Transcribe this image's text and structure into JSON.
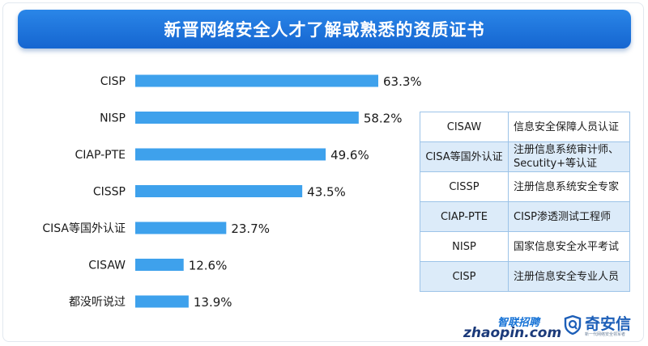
{
  "title": "新晋网络安全人才了解或熟悉的资质证书",
  "chart_data": {
    "type": "bar",
    "orientation": "horizontal",
    "title": "新晋网络安全人才了解或熟悉的资质证书",
    "categories": [
      "CISP",
      "NISP",
      "CIAP-PTE",
      "CISSP",
      "CISA等国外认证",
      "CISAW",
      "都没听说过"
    ],
    "values": [
      63.3,
      58.2,
      49.6,
      43.5,
      23.7,
      12.6,
      13.9
    ],
    "value_labels": [
      "63.3%",
      "58.2%",
      "49.6%",
      "43.5%",
      "23.7%",
      "12.6%",
      "13.9%"
    ],
    "unit": "%",
    "xlim": [
      0,
      100
    ],
    "grid": false,
    "bar_color": "#3ea1ec"
  },
  "legend_table": {
    "rows": [
      {
        "abbr": "CISAW",
        "full": "信息安全保障人员认证"
      },
      {
        "abbr": "CISA等国外认证",
        "full": "注册信息系统审计师、Secutity+等认证"
      },
      {
        "abbr": "CISSP",
        "full": "注册信息系统安全专家"
      },
      {
        "abbr": "CIAP-PTE",
        "full": "CISP渗透测试工程师"
      },
      {
        "abbr": "NISP",
        "full": "国家信息安全水平考试"
      },
      {
        "abbr": "CISP",
        "full": "注册信息安全专业人员"
      }
    ]
  },
  "logos": {
    "zhaopin_cn": "智联招聘",
    "zhaopin_en": "zhaopin.com",
    "qianxin_name": "奇安信",
    "qianxin_tagline": "新一代网络安全领军者"
  }
}
